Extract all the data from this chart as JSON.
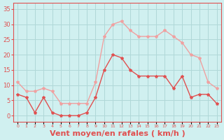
{
  "x": [
    0,
    1,
    2,
    3,
    4,
    5,
    6,
    7,
    8,
    9,
    10,
    11,
    12,
    13,
    14,
    15,
    16,
    17,
    18,
    19,
    20,
    21,
    22,
    23
  ],
  "wind_mean": [
    7,
    6,
    1,
    6,
    1,
    0,
    0,
    0,
    1,
    6,
    15,
    20,
    19,
    15,
    13,
    13,
    13,
    13,
    9,
    13,
    6,
    7,
    7,
    4
  ],
  "wind_gust": [
    11,
    8,
    8,
    9,
    8,
    4,
    4,
    4,
    4,
    11,
    26,
    30,
    31,
    28,
    26,
    26,
    26,
    28,
    26,
    24,
    20,
    19,
    11,
    9
  ],
  "mean_color": "#e05050",
  "gust_color": "#f0a0a0",
  "bg_color": "#d0f0f0",
  "grid_color": "#b0d8d8",
  "axis_color": "#e05050",
  "xlabel": "Vent moyen/en rafales ( km/h )",
  "ylabel": "",
  "ylim": [
    -2,
    37
  ],
  "yticks": [
    0,
    5,
    10,
    15,
    20,
    25,
    30,
    35
  ],
  "xlim": [
    -0.5,
    23.5
  ],
  "title_fontsize": 9,
  "label_fontsize": 8
}
